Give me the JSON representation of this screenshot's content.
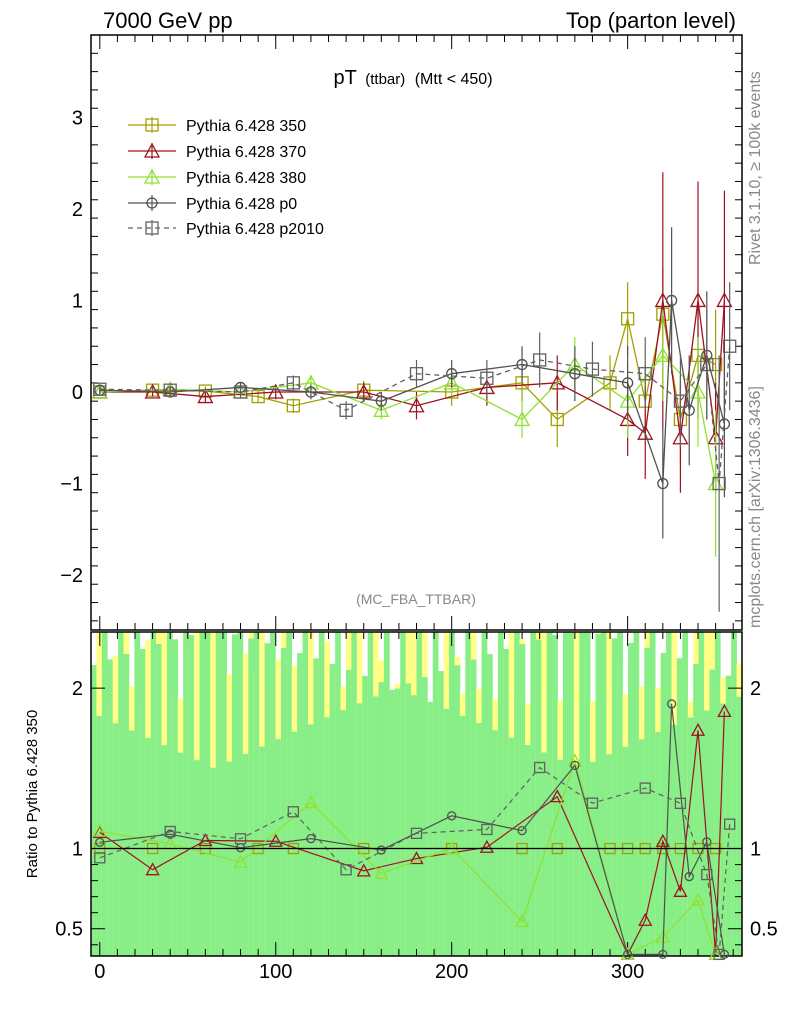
{
  "header": {
    "left": "7000 GeV pp",
    "right": "Top (parton level)"
  },
  "side_text": {
    "rivet": "Rivet 3.1.10, ≥ 100k events",
    "mcplots": "mcplots.cern.ch [arXiv:1306.3436]"
  },
  "plot_title": {
    "main": "pT",
    "sub": "(ttbar)",
    "cut": "(Mtt < 450)"
  },
  "analysis_label": "(MC_FBA_TTBAR)",
  "ratio_ylabel": "Ratio to Pythia 6.428 350",
  "legend": [
    {
      "label": "Pythia 6.428 350"
    },
    {
      "label": "Pythia 6.428 370"
    },
    {
      "label": "Pythia 6.428 380"
    },
    {
      "label": "Pythia 6.428 p0"
    },
    {
      "label": "Pythia 6.428 p2010"
    }
  ],
  "chart_data": {
    "type": "scatter",
    "xlim": [
      -5,
      365
    ],
    "main_ylim": [
      -2.6,
      3.9
    ],
    "ratio_ylim": [
      0.33,
      2.35
    ],
    "x_ticks": [
      "0",
      "100",
      "200",
      "300"
    ],
    "main_y_ticks": [
      "−2",
      "−1",
      "0",
      "1",
      "2",
      "3"
    ],
    "ratio_y_ticks": [
      "0.5",
      "1",
      "2"
    ],
    "series": [
      {
        "name": "Pythia 6.428 350",
        "color": "#a0a000",
        "marker": "square-open",
        "line": "solid",
        "x": [
          0,
          30,
          60,
          90,
          110,
          150,
          200,
          240,
          260,
          290,
          300,
          310,
          320,
          330,
          340,
          350
        ],
        "y": [
          0.0,
          0.02,
          0.01,
          -0.05,
          -0.15,
          0.02,
          0.0,
          0.1,
          -0.3,
          0.1,
          0.8,
          -0.1,
          0.85,
          -0.3,
          0.4,
          0.3
        ],
        "err": [
          0.04,
          0.05,
          0.05,
          0.06,
          0.08,
          0.1,
          0.15,
          0.2,
          0.3,
          0.3,
          0.4,
          0.4,
          0.5,
          0.5,
          0.6,
          0.6
        ]
      },
      {
        "name": "Pythia 6.428 370",
        "color": "#a01020",
        "marker": "triangle-open",
        "line": "solid",
        "x": [
          0,
          30,
          60,
          100,
          150,
          180,
          220,
          260,
          300,
          310,
          320,
          330,
          340,
          350,
          355
        ],
        "y": [
          0.0,
          0.0,
          -0.05,
          0.0,
          0.0,
          -0.15,
          0.05,
          0.1,
          -0.3,
          -0.45,
          1.0,
          -0.5,
          1.0,
          -0.5,
          1.0
        ],
        "err": [
          0.04,
          0.05,
          0.06,
          0.08,
          0.1,
          0.15,
          0.2,
          0.3,
          0.4,
          0.5,
          1.4,
          0.6,
          1.3,
          0.6,
          1.2
        ]
      },
      {
        "name": "Pythia 6.428 380",
        "color": "#90e030",
        "marker": "triangle-open",
        "line": "solid",
        "x": [
          0,
          40,
          80,
          120,
          160,
          200,
          240,
          270,
          300,
          320,
          340,
          350
        ],
        "y": [
          0.0,
          0.03,
          0.0,
          0.1,
          -0.2,
          0.1,
          -0.3,
          0.3,
          -0.1,
          0.4,
          0.0,
          -1.0
        ],
        "err": [
          0.04,
          0.05,
          0.06,
          0.08,
          0.1,
          0.15,
          0.2,
          0.3,
          0.4,
          0.5,
          0.6,
          0.8
        ]
      },
      {
        "name": "Pythia 6.428 p0",
        "color": "#505050",
        "marker": "circle-open",
        "line": "solid",
        "x": [
          0,
          40,
          80,
          120,
          160,
          200,
          240,
          270,
          300,
          320,
          325,
          335,
          345,
          355
        ],
        "y": [
          0.02,
          0.0,
          0.05,
          0.0,
          -0.1,
          0.2,
          0.3,
          0.2,
          0.1,
          -1.0,
          1.0,
          -0.2,
          0.4,
          -0.35
        ],
        "err": [
          0.04,
          0.05,
          0.06,
          0.08,
          0.1,
          0.15,
          0.2,
          0.3,
          0.4,
          0.6,
          0.8,
          0.6,
          0.7,
          0.8
        ]
      },
      {
        "name": "Pythia 6.428 p2010",
        "color": "#606060",
        "marker": "square-open",
        "line": "dashed",
        "x": [
          0,
          40,
          80,
          110,
          140,
          180,
          220,
          250,
          280,
          310,
          330,
          345,
          352,
          358
        ],
        "y": [
          0.03,
          0.02,
          0.0,
          0.1,
          -0.2,
          0.2,
          0.15,
          0.35,
          0.25,
          0.2,
          -0.1,
          0.3,
          -1.0,
          0.5
        ],
        "err": [
          0.04,
          0.05,
          0.06,
          0.08,
          0.1,
          0.15,
          0.2,
          0.3,
          0.3,
          0.4,
          0.5,
          0.6,
          1.4,
          0.7
        ]
      }
    ]
  }
}
